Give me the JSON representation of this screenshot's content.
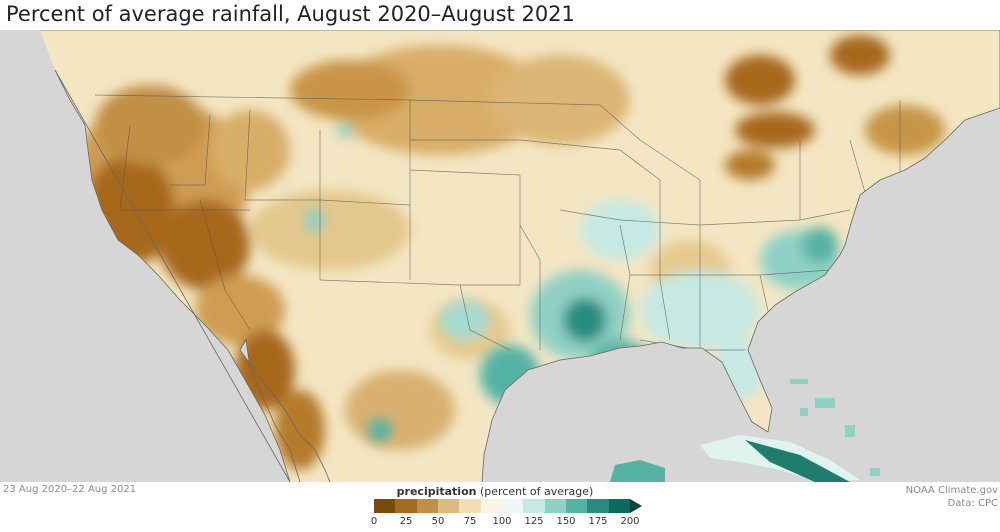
{
  "title": "Percent of average rainfall, August 2020–August 2021",
  "date_range": "23 Aug 2020–22 Aug 2021",
  "credit": {
    "source": "NOAA Climate.gov",
    "data": "Data: CPC"
  },
  "legend": {
    "label_bold": "precipitation",
    "label_rest": " (percent of average)",
    "ticks": [
      "0",
      "25",
      "50",
      "75",
      "100",
      "125",
      "150",
      "175",
      "200"
    ],
    "colors": [
      "#7a4a0c",
      "#a46a1d",
      "#c18f45",
      "#dbbb7d",
      "#f1dfb3",
      "#fbf5e6",
      "#eef7f5",
      "#c6e9e3",
      "#8fd0c5",
      "#55b3a6",
      "#268c80",
      "#0a6a5d"
    ]
  },
  "colors": {
    "land_base": "#f4e6c3",
    "ocean": "#d6d6d6",
    "very_dry": "#a8681f",
    "dry": "#cf9c52",
    "wet": "#8fd0c5",
    "very_wet": "#1f7d70"
  }
}
